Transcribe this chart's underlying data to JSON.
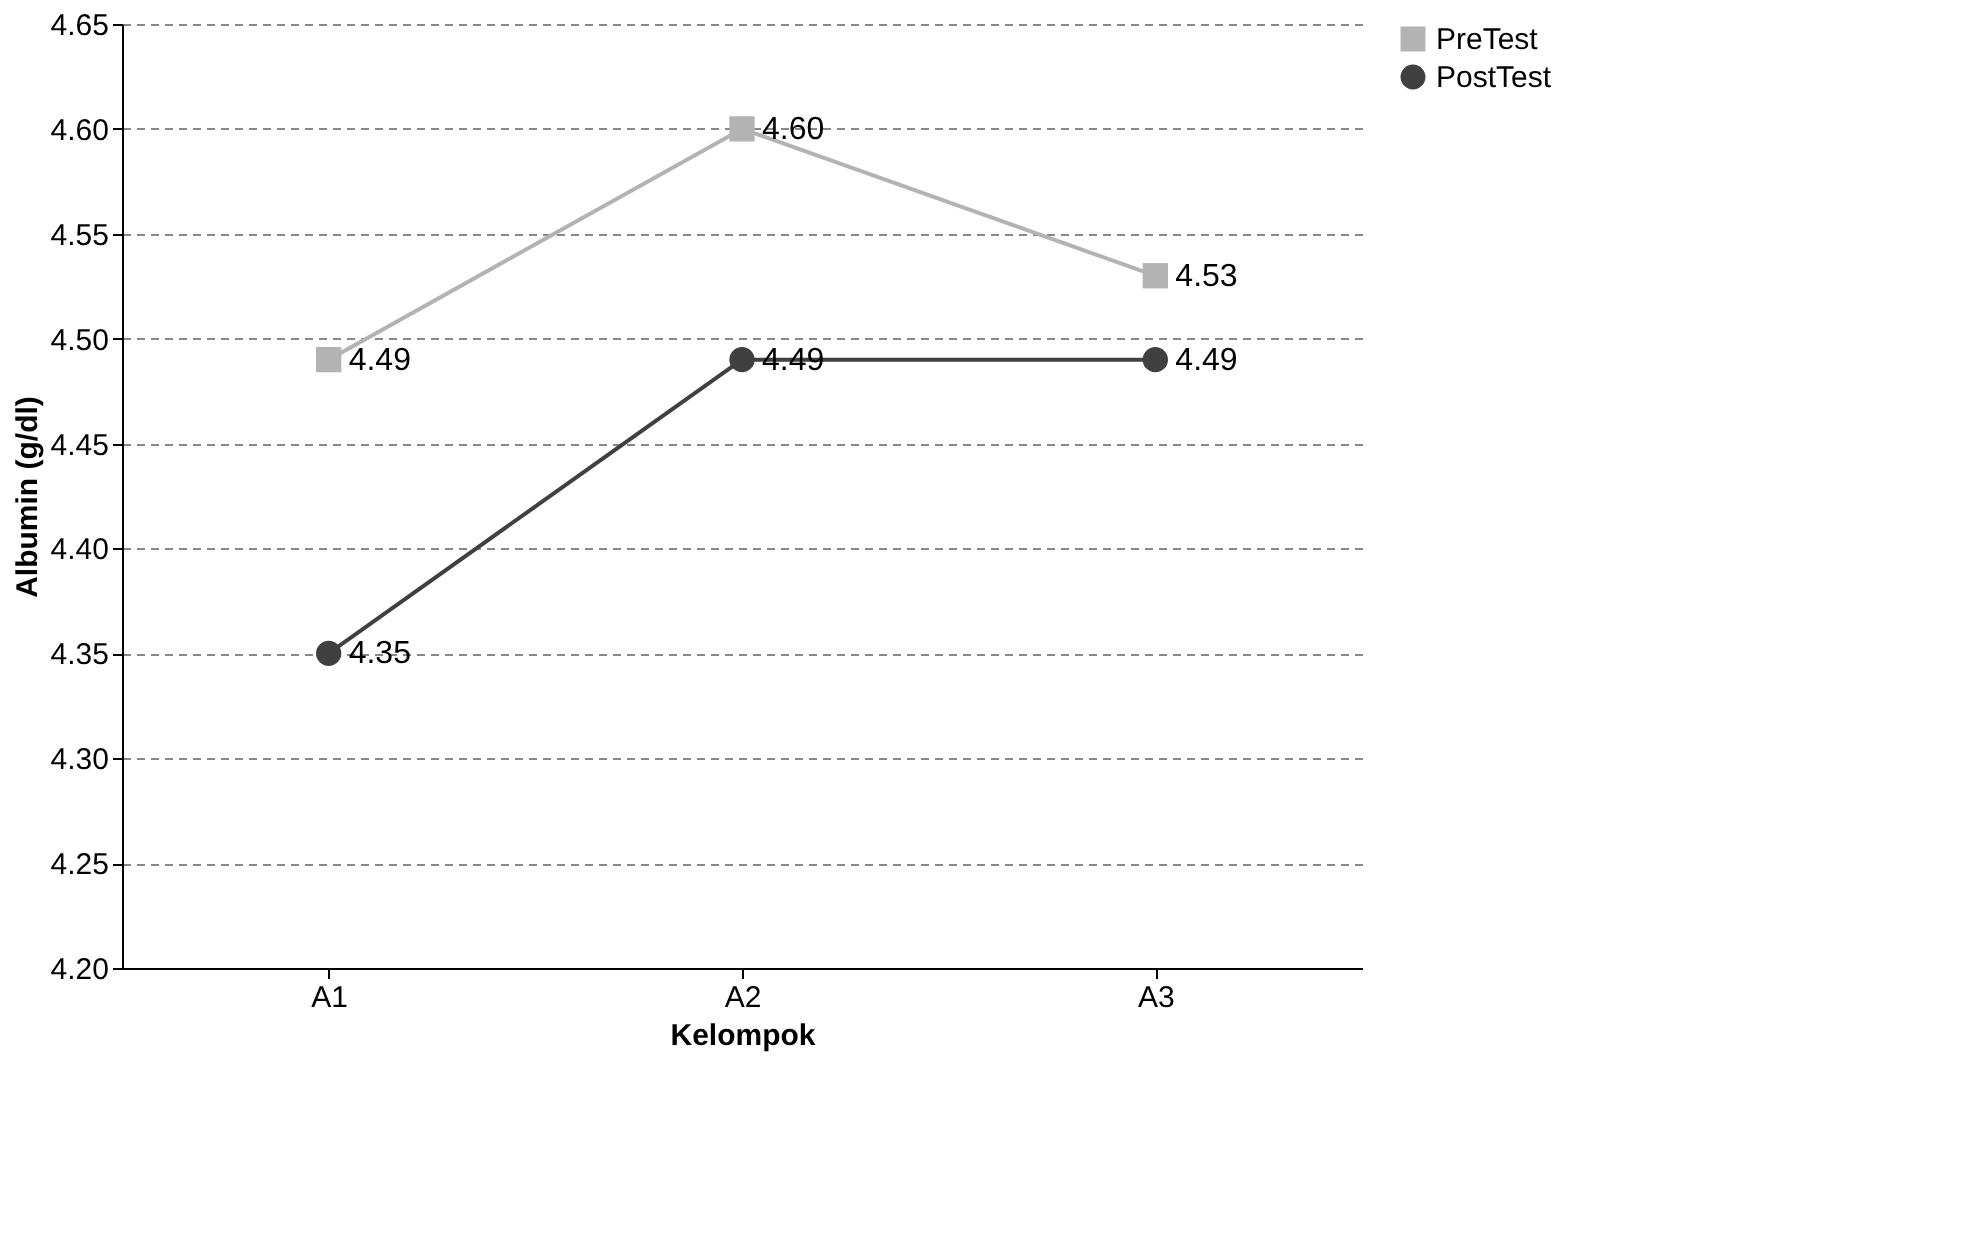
{
  "chart_data": {
    "type": "line",
    "xlabel": "Kelompok",
    "ylabel": "Albumin (g/dl)",
    "categories": [
      "A1",
      "A2",
      "A3"
    ],
    "series": [
      {
        "name": "PreTest",
        "color": "#b3b3b3",
        "marker": "square",
        "values": [
          4.49,
          4.6,
          4.53
        ],
        "value_labels": [
          "4.49",
          "4.60",
          "4.53"
        ]
      },
      {
        "name": "PostTest",
        "color": "#404040",
        "marker": "circle",
        "values": [
          4.35,
          4.49,
          4.49
        ],
        "value_labels": [
          "4.35",
          "4.49",
          "4.49"
        ]
      }
    ],
    "ylim": [
      4.2,
      4.65
    ],
    "yticks": [
      {
        "value": 4.2,
        "label": "4.20"
      },
      {
        "value": 4.25,
        "label": "4.25"
      },
      {
        "value": 4.3,
        "label": "4.30"
      },
      {
        "value": 4.35,
        "label": "4.35"
      },
      {
        "value": 4.4,
        "label": "4.40"
      },
      {
        "value": 4.45,
        "label": "4.45"
      },
      {
        "value": 4.5,
        "label": "4.50"
      },
      {
        "value": 4.55,
        "label": "4.55"
      },
      {
        "value": 4.6,
        "label": "4.60"
      },
      {
        "value": 4.65,
        "label": "4.65"
      }
    ],
    "grid": "y",
    "line_style": "solid",
    "legend": "right"
  }
}
